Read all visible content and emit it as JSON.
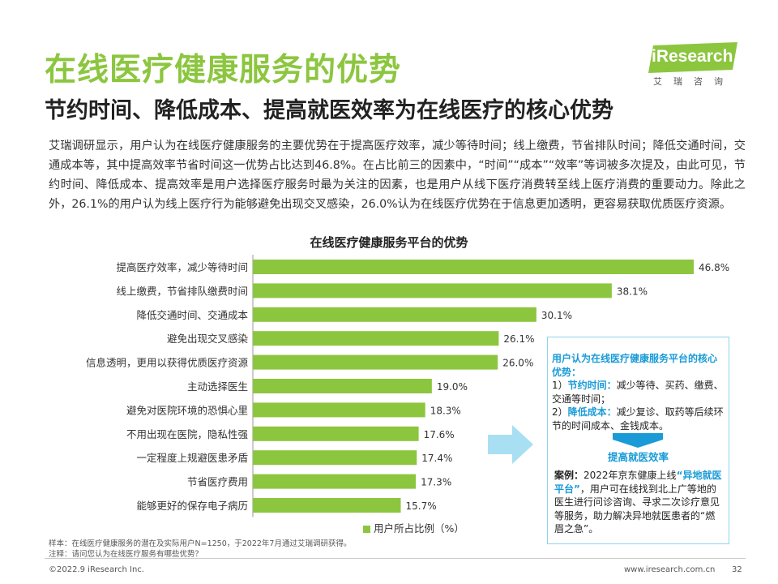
{
  "header": {
    "title": "在线医疗健康服务的优势",
    "subtitle": "节约时间、降低成本、提高就医效率为在线医疗的核心优势"
  },
  "logo": {
    "name": "iResearch",
    "sub": "艾瑞咨询"
  },
  "paragraph": "艾瑞调研显示，用户认为在线医疗健康服务的主要优势在于提高医疗效率，减少等待时间；线上缴费，节省排队时间；降低交通时间，交通成本等，其中提高效率节省时间这一优势占比达到46.8%。在占比前三的因素中，“时间”“成本”“效率”等词被多次提及，由此可见，节约时间、降低成本、提高效率是用户选择医疗服务时最为关注的因素，也是用户从线下医疗消费转至线上医疗消费的重要动力。除此之外，26.1%的用户认为线上医疗行为能够避免出现交叉感染，26.0%认为在线医疗优势在于信息更加透明，更容易获取优质医疗资源。",
  "chart_data": {
    "type": "bar",
    "orientation": "horizontal",
    "title": "在线医疗健康服务平台的优势",
    "categories": [
      "提高医疗效率，减少等待时间",
      "线上缴费，节省排队缴费时间",
      "降低交通时间、交通成本",
      "避免出现交叉感染",
      "信息透明，更用以获得优质医疗资源",
      "主动选择医生",
      "避免对医院环境的恐惧心里",
      "不用出现在医院，隐私性强",
      "一定程度上规避医患矛盾",
      "节省医疗费用",
      "能够更好的保存电子病历"
    ],
    "series": [
      {
        "name": "用户所占比例（%）",
        "values": [
          46.8,
          38.1,
          30.1,
          26.1,
          26.0,
          19.0,
          18.3,
          17.6,
          17.4,
          17.3,
          15.7
        ]
      }
    ],
    "value_labels": [
      "46.8%",
      "38.1%",
      "30.1%",
      "26.1%",
      "26.0%",
      "19.0%",
      "18.3%",
      "17.6%",
      "17.4%",
      "17.3%",
      "15.7%"
    ],
    "xlim": [
      0,
      50
    ],
    "grid": false,
    "legend_position": "bottom",
    "color": "#8cc63f"
  },
  "callout": {
    "question": "用户认为在线医疗健康服务平台的核心优势：",
    "item1_prefix": "1）",
    "item1_key": "节约时间：",
    "item1_text": "减少等待、买药、缴费、交通等时间；",
    "item2_prefix": "2）",
    "item2_key": "降低成本：",
    "item2_text": "减少复诊、取药等后续环节的时间成本、金钱成本。",
    "conclusion": "提高就医效率",
    "case_label": "案例：",
    "case_text1": "2022年京东健康上线",
    "case_hl": "“异地就医平台”",
    "case_text2": "，用户可在线找到北上广等地的医生进行问诊咨询、寻求二次诊疗意见等服务，助力解决异地就医患者的“燃眉之急”。"
  },
  "notes": {
    "sample": "样本：在线医疗健康服务的潜在及实际用户N=1250，于2022年7月通过艾瑞调研获得。",
    "note": "注释：请问您认为在线医疗服务有哪些优势？"
  },
  "footer": {
    "copyright": "©2022.9 iResearch Inc.",
    "url": "www.iresearch.com.cn",
    "page": "32"
  }
}
